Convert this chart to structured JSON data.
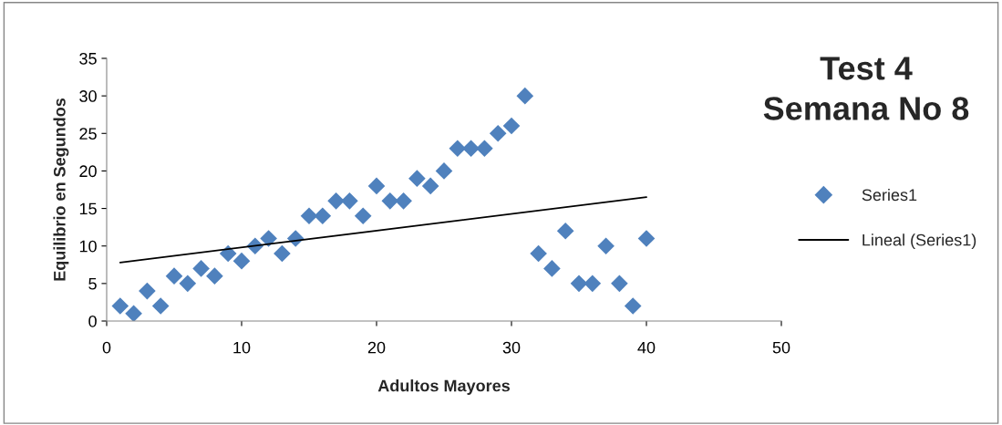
{
  "chart_data": {
    "type": "scatter",
    "title": "Test 4\nSemana No 8",
    "xlabel": "Adultos Mayores",
    "ylabel": "Equilibrio en Segundos",
    "xlim": [
      0,
      50
    ],
    "xticks": [
      0,
      10,
      20,
      30,
      40,
      50
    ],
    "ylim": [
      0,
      35
    ],
    "yticks": [
      0,
      5,
      10,
      15,
      20,
      25,
      30,
      35
    ],
    "grid": false,
    "legend": "right",
    "series": [
      {
        "name": "Series1",
        "marker": "diamond",
        "color": "#4f81bd",
        "x": [
          1,
          2,
          3,
          4,
          5,
          6,
          7,
          8,
          9,
          10,
          11,
          12,
          13,
          14,
          15,
          16,
          17,
          18,
          19,
          20,
          21,
          22,
          23,
          24,
          25,
          26,
          27,
          28,
          29,
          30,
          31,
          32,
          33,
          34,
          35,
          36,
          37,
          38,
          39,
          40
        ],
        "values": [
          2,
          1,
          4,
          2,
          6,
          5,
          7,
          6,
          9,
          8,
          10,
          11,
          9,
          11,
          14,
          14,
          16,
          16,
          14,
          18,
          16,
          16,
          19,
          18,
          20,
          23,
          23,
          23,
          25,
          26,
          30,
          9,
          7,
          12,
          5,
          5,
          10,
          5,
          2,
          11
        ]
      },
      {
        "name": "Lineal (Series1)",
        "type": "line",
        "color": "#000000",
        "x": [
          1,
          40
        ],
        "values": [
          7.8,
          16.5
        ]
      }
    ]
  }
}
